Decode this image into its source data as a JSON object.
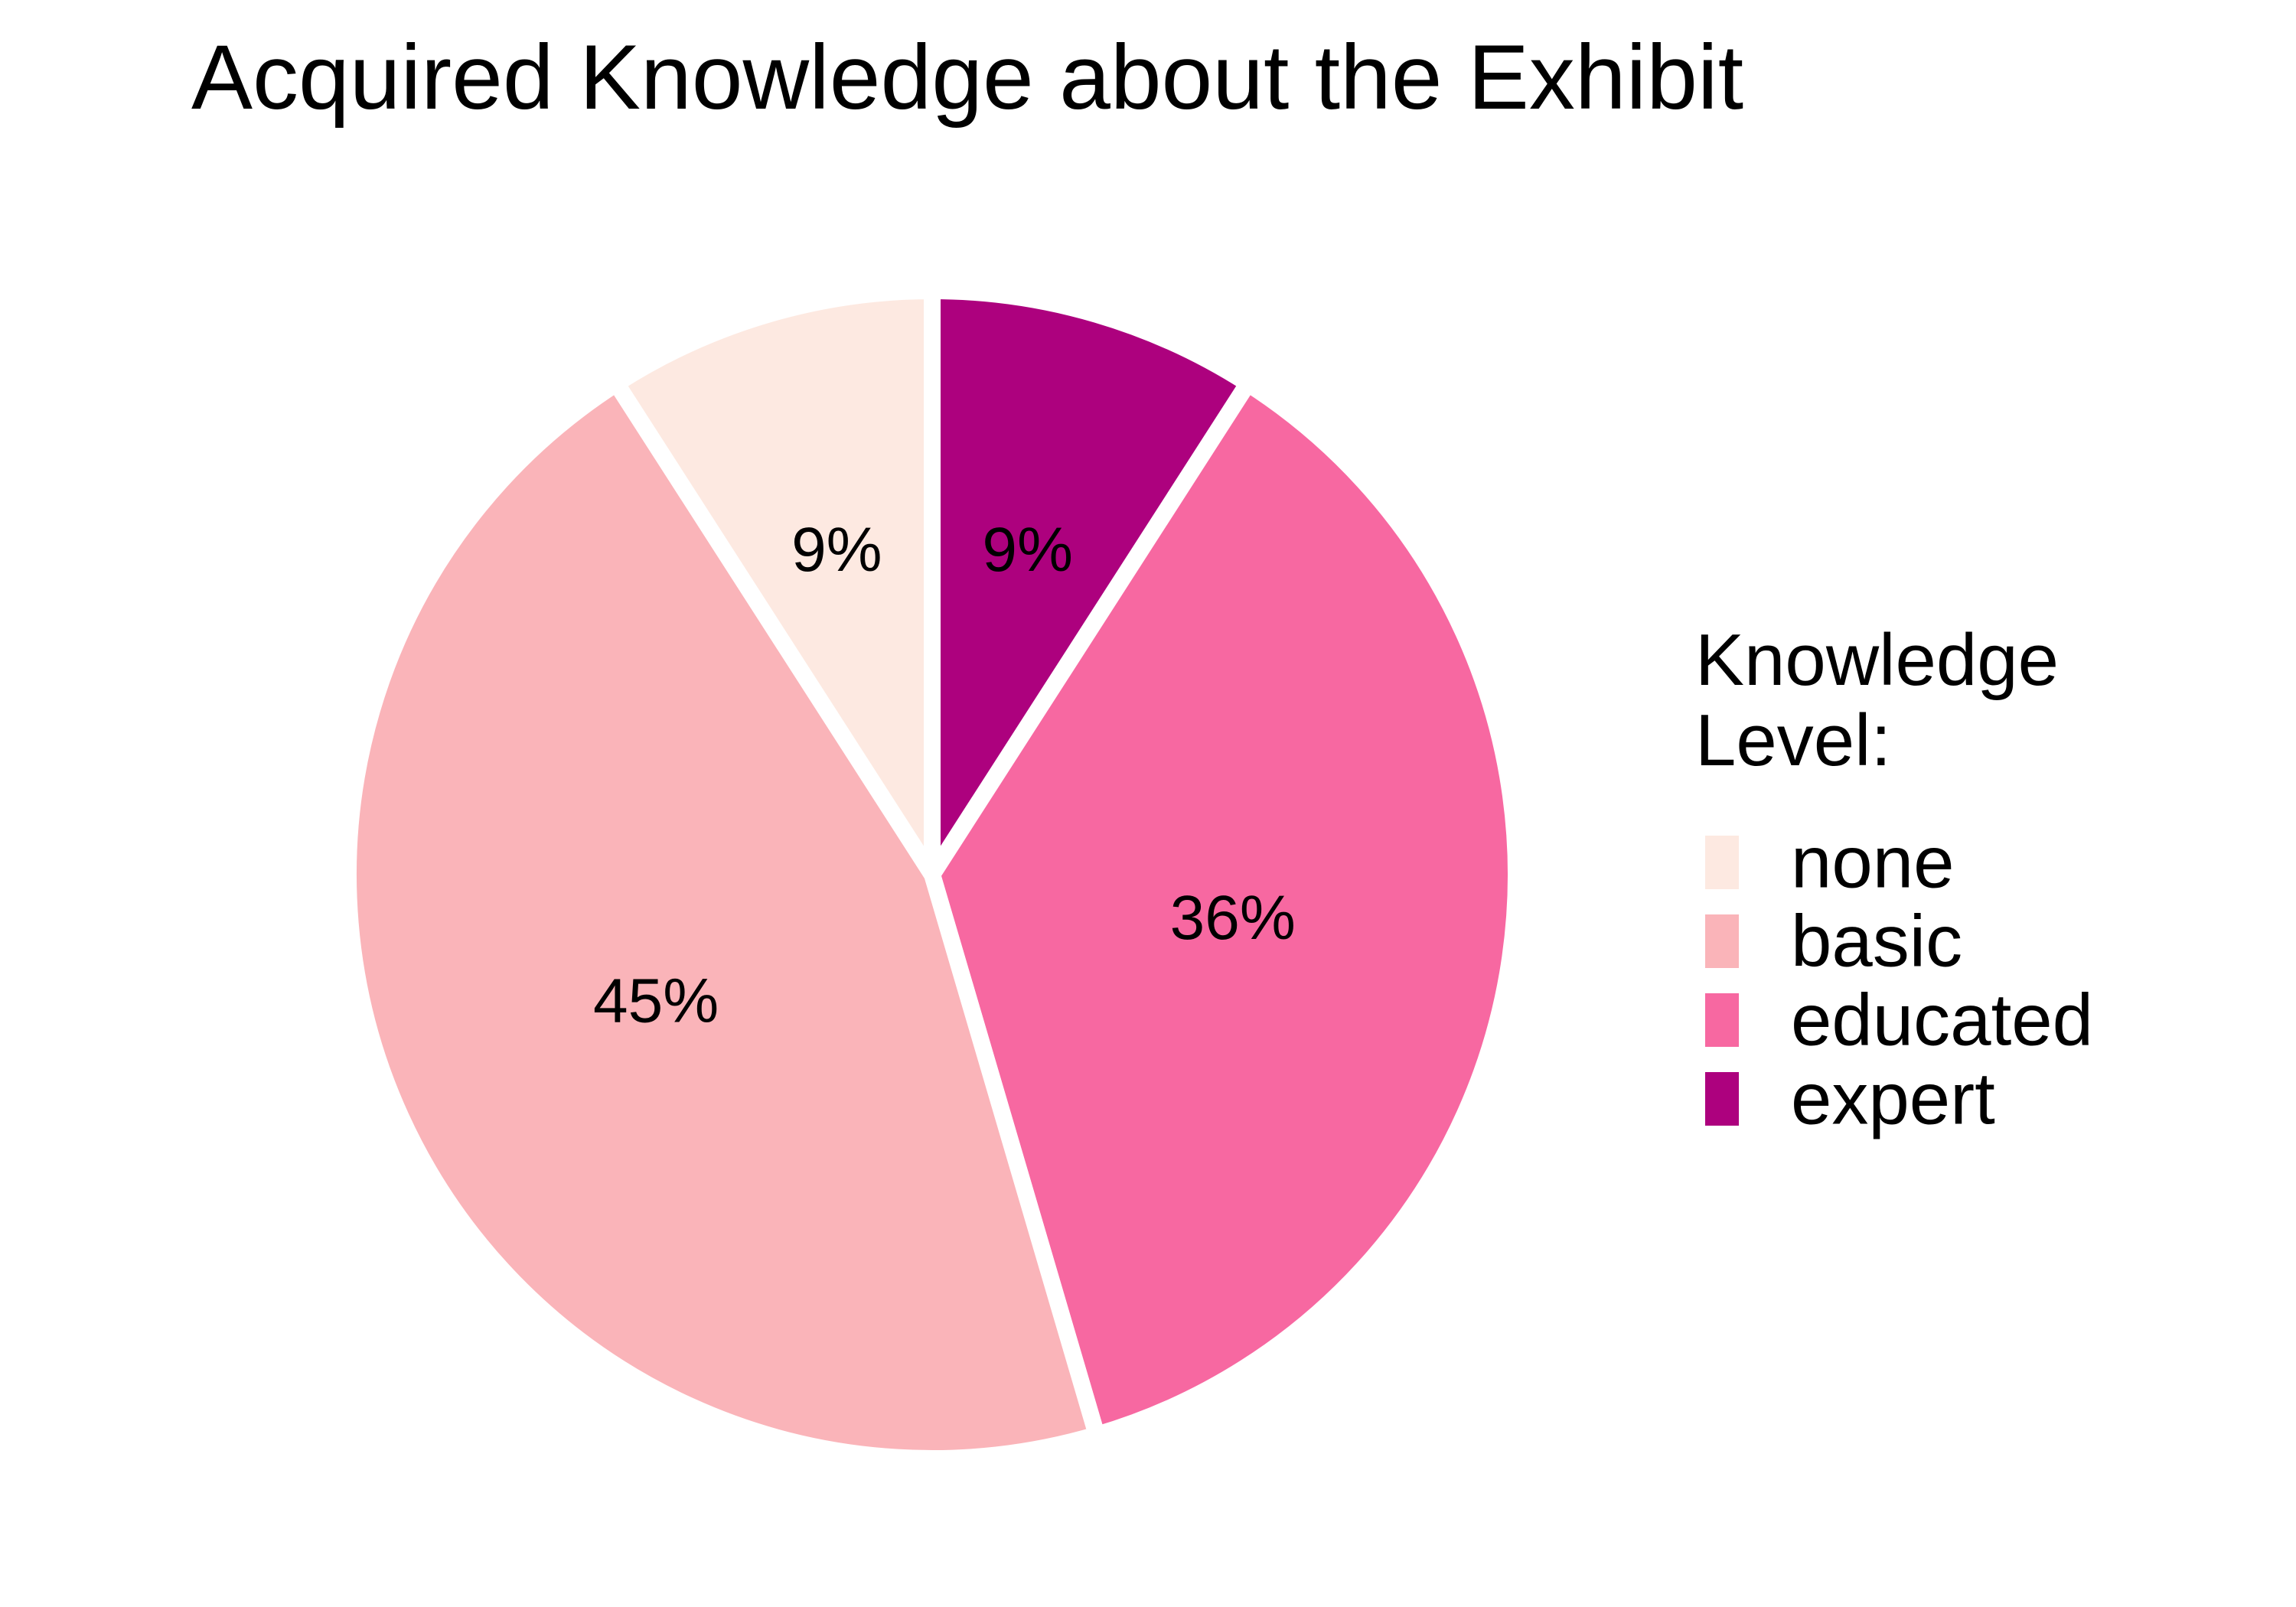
{
  "chart_data": {
    "type": "pie",
    "title": "Acquired Knowledge about the Exhibit",
    "legend": {
      "title_lines": [
        "Knowledge",
        "Level:"
      ],
      "position": "right"
    },
    "slices": [
      {
        "name": "none",
        "value": 9,
        "label": "9%",
        "color": "#fde9e1"
      },
      {
        "name": "basic",
        "value": 45,
        "label": "45%",
        "color": "#fab4b9"
      },
      {
        "name": "educated",
        "value": 36,
        "label": "36%",
        "color": "#f768a1"
      },
      {
        "name": "expert",
        "value": 9,
        "label": "9%",
        "color": "#ad017e"
      }
    ],
    "draw_order": "clockwise-from-top: expert, educated, basic, none",
    "separator_color": "#ffffff"
  }
}
